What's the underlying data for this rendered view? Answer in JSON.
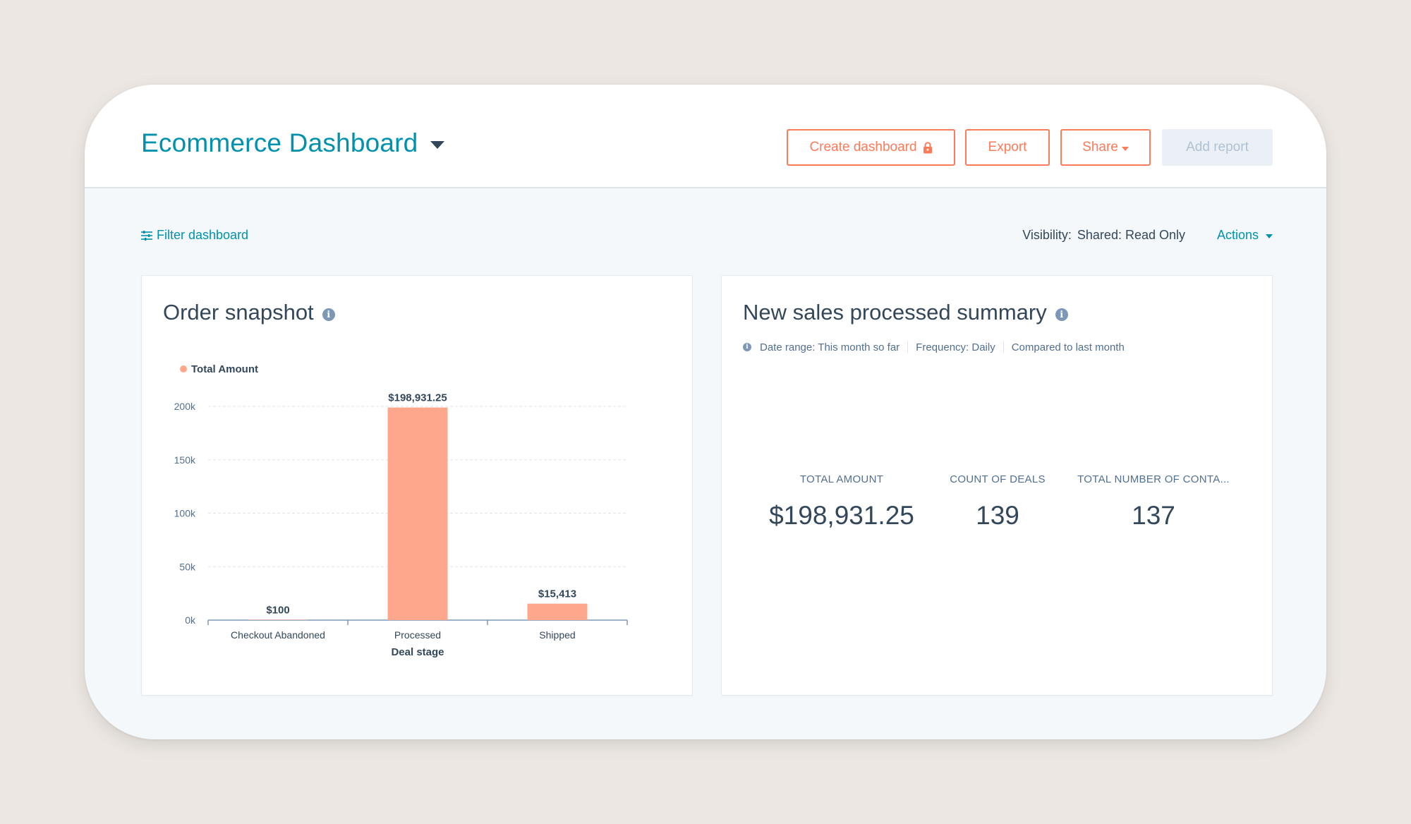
{
  "header": {
    "title": "Ecommerce Dashboard",
    "buttons": {
      "create": "Create dashboard",
      "export": "Export",
      "share": "Share",
      "add_report": "Add report"
    }
  },
  "toolbar": {
    "filter_label": "Filter dashboard",
    "visibility_label": "Visibility:",
    "visibility_value": "Shared: Read Only",
    "actions_label": "Actions"
  },
  "order_snapshot": {
    "title": "Order snapshot"
  },
  "chart_data": {
    "type": "bar",
    "title": "Order snapshot",
    "categories": [
      "Checkout Abandoned",
      "Processed",
      "Shipped"
    ],
    "series": [
      {
        "name": "Total Amount",
        "values": [
          100,
          198931.25,
          15413
        ]
      }
    ],
    "data_labels": [
      "$100",
      "$198,931.25",
      "$15,413"
    ],
    "xlabel": "Deal stage",
    "ylabel": "",
    "ylim": [
      0,
      200000
    ],
    "yticks": [
      0,
      50000,
      100000,
      150000,
      200000
    ],
    "ytick_labels": [
      "0k",
      "50k",
      "100k",
      "150k",
      "200k"
    ],
    "grid": true,
    "legend": "top-left",
    "bar_color": "#ffa78c"
  },
  "summary": {
    "title": "New sales processed summary",
    "meta": {
      "date_range": "Date range: This month so far",
      "frequency": "Frequency: Daily",
      "compared": "Compared to last month"
    },
    "kpis": [
      {
        "label": "TOTAL AMOUNT",
        "value": "$198,931.25"
      },
      {
        "label": "COUNT OF DEALS",
        "value": "139"
      },
      {
        "label": "TOTAL NUMBER OF CONTA...",
        "value": "137"
      }
    ]
  },
  "colors": {
    "accent": "#0091ae",
    "primary_button": "#ff7a59",
    "text": "#33475b"
  }
}
